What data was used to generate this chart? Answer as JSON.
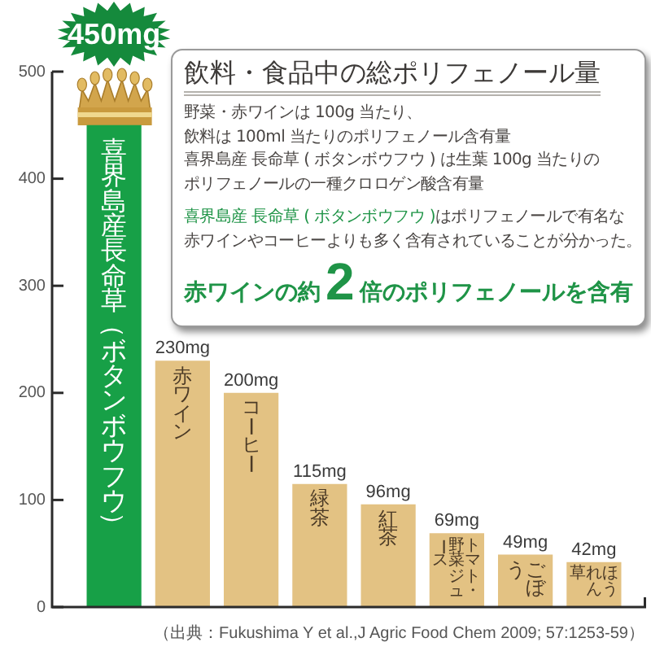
{
  "chart_data": {
    "type": "bar",
    "title": "飲料・食品中の総ポリフェノール量",
    "categories": [
      "喜界島産長命草（ボタンボウフウ）",
      "赤ワイン",
      "コーヒー",
      "緑茶",
      "紅茶",
      "トマト・野菜ジュース",
      "ごぼう",
      "ほうれん草"
    ],
    "values": [
      450,
      230,
      200,
      115,
      96,
      69,
      49,
      42
    ],
    "colors": [
      "#17a047",
      "#e3c283",
      "#e3c283",
      "#e3c283",
      "#e3c283",
      "#e3c283",
      "#e3c283",
      "#e3c283"
    ],
    "value_labels": [
      "450mg",
      "230mg",
      "200mg",
      "115mg",
      "96mg",
      "69mg",
      "49mg",
      "42mg"
    ],
    "ylim": [
      0,
      500
    ],
    "yticks": [
      0,
      100,
      200,
      300,
      400,
      500
    ],
    "annotations": [
      "野菜・赤ワインは 100g 当たり、",
      "飲料は 100ml 当たりのポリフェノール含有量",
      "喜界島産 長命草 ( ボタンボウフウ ) は生葉 100g 当たりの",
      "ポリフェノールの一種クロロゲン酸含有量",
      "喜界島産 長命草 ( ボタンボウフウ )",
      "はポリフェノールで有名な",
      "赤ワインやコーヒーよりも多く含有されていることが分かった。",
      "赤ワインの約",
      "2",
      "倍のポリフェノールを含有",
      "（出典：Fukushima Y et al.,J Agric Food Chem 2009; 57:1253-59）"
    ]
  }
}
